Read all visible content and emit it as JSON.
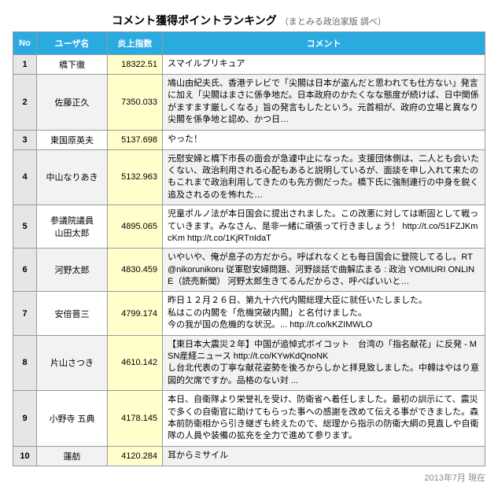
{
  "title": "コメント獲得ポイントランキング",
  "title_sub": "（まとみる政治家版 調べ）",
  "headers": {
    "no": "No",
    "user": "ユーザ名",
    "score": "炎上指数",
    "comment": "コメント"
  },
  "rows": [
    {
      "no": "1",
      "user": "橋下徹",
      "score": "18322.51",
      "comment": "スマイルプリキュア"
    },
    {
      "no": "2",
      "user": "佐藤正久",
      "score": "7350.033",
      "comment": "鳩山由紀夫氏、香港テレビで「尖閣は日本が盗んだと思われても仕方ない」発言に加え「尖閣はまさに係争地だ。日本政府のかたくなな態度が続けば、日中関係がますます厳しくなる」旨の発言もしたという。元首相が、政府の立場と異なり尖閣を係争地と認め、かつ日…"
    },
    {
      "no": "3",
      "user": "東国原英夫",
      "score": "5137.698",
      "comment": "やった！"
    },
    {
      "no": "4",
      "user": "中山なりあき",
      "score": "5132.963",
      "comment": "元慰安婦と橋下市長の面会が急遽中止になった。支援団体側は、二人とも会いたくない、政治利用される心配もあると説明しているが、面談を申し入れて来たのもこれまで政治利用してきたのも先方側だった。橋下氏に強制連行の中身を鋭く追及されるのを怖れた…"
    },
    {
      "no": "5",
      "user": "参議院議員\n山田太郎",
      "score": "4895.065",
      "comment": "児童ポルノ法が本日国会に提出されました。この改悪に対しては断固として戦っていきます。みなさん、是非一緒に頑張って行きましょう！ http://t.co/51FZJKmcKm http://t.co/1KjRTnIdaT"
    },
    {
      "no": "6",
      "user": "河野太郎",
      "score": "4830.459",
      "comment": "いやいや、俺が息子の方だから。呼ばれなくとも毎日国会に登院してるし。RT @nikorunikoru 従軍慰安婦問題、河野談話で曲解広まる : 政治 YOMIURI ONLINE（読売新聞） 河野太郎生きてるんだからさ、呼べばいいと…"
    },
    {
      "no": "7",
      "user": "安倍晋三",
      "score": "4799.174",
      "comment": "昨日１２月２６日、第九十六代内閣総理大臣に就任いたしました。\n私はこの内閣を「危機突破内閣」と名付けました。\n今の我が国の危機的な状況。... http://t.co/kKZIMWLO"
    },
    {
      "no": "8",
      "user": "片山さつき",
      "score": "4610.142",
      "comment": "【東日本大震災２年】中国が追悼式ボイコット　台湾の「指名献花」に反発 - MSN産経ニュース http://t.co/KYwKdQnoNK\nし台北代表の丁寧な献花姿勢を後ろからしかと拝見致しました。中韓はやはり意図的欠席ですか。品格のない対 ..."
    },
    {
      "no": "9",
      "user": "小野寺 五典",
      "score": "4178.145",
      "comment": "本日、自衛隊より栄誉礼を受け、防衛省へ着任しました。最初の訓示にて、震災で多くの自衛官に助けてもらった事への感謝を改めて伝える事ができました。森本前防衛相から引き継ぎも終えたので、総理から指示の防衛大綱の見直しや自衛隊の人員や装備の拡充を全力で進めて参ります。"
    },
    {
      "no": "10",
      "user": "蓮舫",
      "score": "4120.284",
      "comment": "耳からミサイル"
    }
  ],
  "footer": "2013年7月 現在"
}
